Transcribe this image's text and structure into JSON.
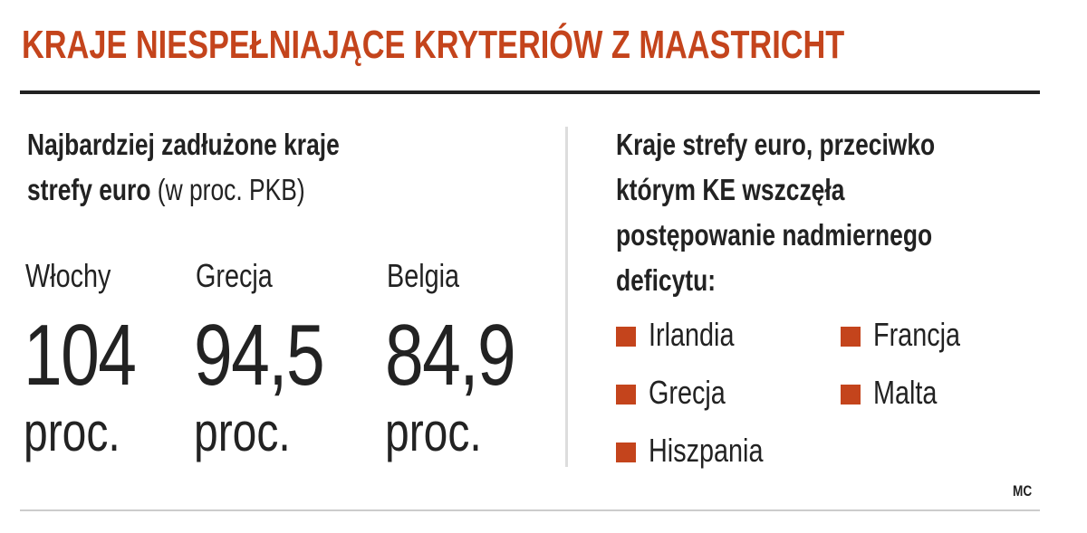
{
  "header": {
    "title": "KRAJE NIESPEŁNIAJĄCE KRYTERIÓW Z MAASTRICHT"
  },
  "left": {
    "heading": [
      "Najbardziej zadłużone kraje",
      "strefy euro"
    ],
    "heading_note": "(w proc. PKB)",
    "items": [
      {
        "country": "Włochy",
        "value": "104",
        "unit": "proc."
      },
      {
        "country": "Grecja",
        "value": "94,5",
        "unit": "proc."
      },
      {
        "country": "Belgia",
        "value": "84,9",
        "unit": "proc."
      }
    ]
  },
  "right": {
    "heading": [
      "Kraje strefy euro, przeciwko",
      "którym KE wszczęła",
      "postępowanie nadmiernego",
      "deficytu:"
    ],
    "items": [
      "Irlandia",
      "Francja",
      "Grecja",
      "Malta",
      "Hiszpania"
    ]
  },
  "credit": "MC"
}
